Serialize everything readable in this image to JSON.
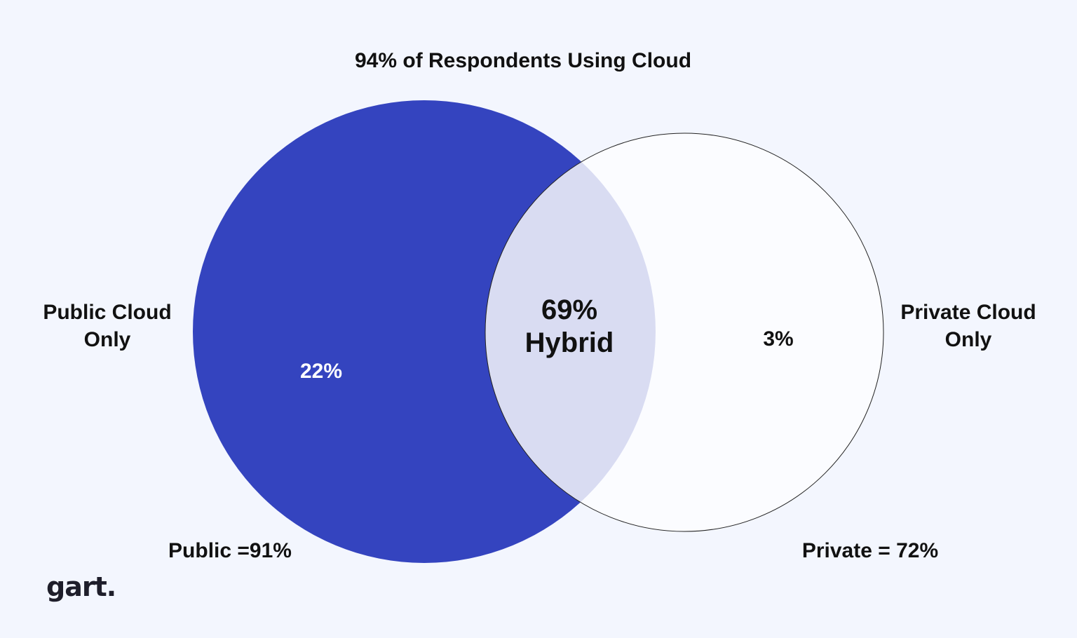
{
  "title": "94% of Respondents Using Cloud",
  "colors": {
    "background": "#f3f6fe",
    "public": "#3444bf",
    "private": "#fbfcff",
    "hybrid": "#d9dcf2"
  },
  "public": {
    "side_label": "Public Cloud\nOnly",
    "only_value": "22%",
    "total_label": "Public =91%"
  },
  "private": {
    "side_label": "Private Cloud\nOnly",
    "only_value": "3%",
    "total_label": "Private = 72%"
  },
  "hybrid": {
    "value": "69%",
    "label": "Hybrid"
  },
  "logo": "gart."
}
